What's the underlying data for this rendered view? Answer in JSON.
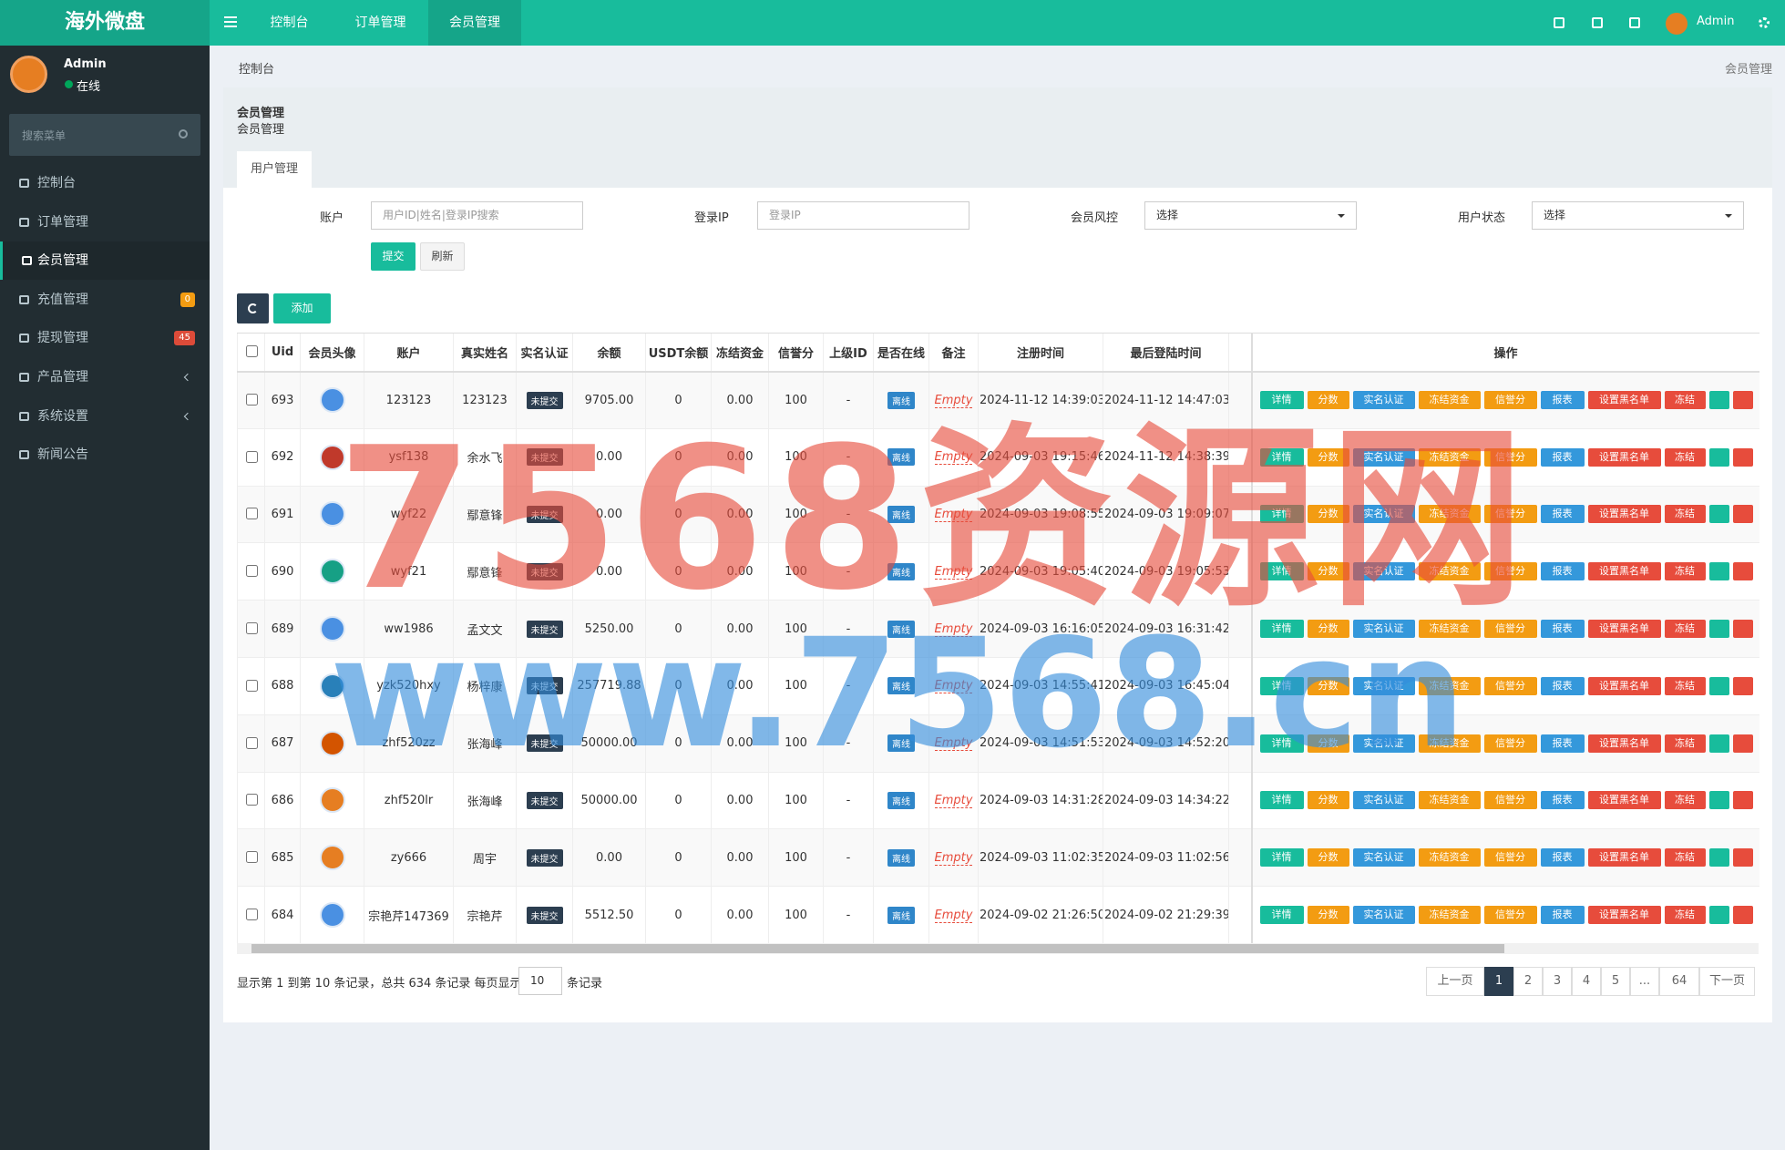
{
  "brand": "海外微盘",
  "topnav": [
    "控制台",
    "订单管理",
    "会员管理"
  ],
  "topright_user": "Admin",
  "sidebar": {
    "user": "Admin",
    "status": "在线",
    "search": "搜索菜单",
    "menu": [
      {
        "label": "控制台"
      },
      {
        "label": "订单管理"
      },
      {
        "label": "会员管理"
      },
      {
        "label": "充值管理",
        "badge": "0"
      },
      {
        "label": "提现管理",
        "badge": "45"
      },
      {
        "label": "产品管理"
      },
      {
        "label": "系统设置"
      },
      {
        "label": "新闻公告"
      }
    ]
  },
  "breadcrumb": {
    "home": "控制台",
    "current": "会员管理"
  },
  "panel": {
    "title": "会员管理",
    "subtitle": "会员管理",
    "tab": "用户管理"
  },
  "filters": [
    {
      "label": "账户",
      "placeholder": "用户ID|姓名|登录IP搜索"
    },
    {
      "label": "登录IP",
      "placeholder": "登录IP"
    },
    {
      "label": "会员风控",
      "select": "选择"
    },
    {
      "label": "用户状态",
      "select": "选择"
    }
  ],
  "buttons": {
    "submit": "提交",
    "reset": "刷新",
    "add": "添加"
  },
  "table": {
    "columns": [
      "Uid",
      "会员头像",
      "账户",
      "真实姓名",
      "实名认证",
      "余额",
      "USDT余额",
      "冻结资金",
      "信誉分",
      "上级ID",
      "是否在线",
      "备注",
      "注册时间",
      "最后登陆时间",
      "操作"
    ],
    "actions": [
      "详情",
      "分数",
      "实名认证",
      "冻结资金",
      "信誉分",
      "报表",
      "设置黑名单",
      "冻结"
    ],
    "rows": [
      {
        "uid": "693",
        "account": "123123",
        "name": "123123",
        "auth": "未提交",
        "balance": "9705.00",
        "usdt": "0",
        "frozen": "0.00",
        "credit": "100",
        "parent": "-",
        "online": "离线",
        "remark": "Empty",
        "reg_time": "2024-11-12 14:39:03",
        "last_login": "2024-11-12 14:47:03"
      },
      {
        "uid": "692",
        "account": "ysf138",
        "name": "余水飞",
        "auth": "未提交",
        "balance": "0.00",
        "usdt": "0",
        "frozen": "0.00",
        "credit": "100",
        "parent": "-",
        "online": "离线",
        "remark": "Empty",
        "reg_time": "2024-09-03 19:15:46",
        "last_login": "2024-11-12 14:38:39"
      },
      {
        "uid": "691",
        "account": "wyf22",
        "name": "鄢意锋",
        "auth": "未提交",
        "balance": "0.00",
        "usdt": "0",
        "frozen": "0.00",
        "credit": "100",
        "parent": "-",
        "online": "离线",
        "remark": "Empty",
        "reg_time": "2024-09-03 19:08:55",
        "last_login": "2024-09-03 19:09:07"
      },
      {
        "uid": "690",
        "account": "wyf21",
        "name": "鄢意锋",
        "auth": "未提交",
        "balance": "0.00",
        "usdt": "0",
        "frozen": "0.00",
        "credit": "100",
        "parent": "-",
        "online": "离线",
        "remark": "Empty",
        "reg_time": "2024-09-03 19:05:40",
        "last_login": "2024-09-03 19:05:53"
      },
      {
        "uid": "689",
        "account": "ww1986",
        "name": "孟文文",
        "auth": "未提交",
        "balance": "5250.00",
        "usdt": "0",
        "frozen": "0.00",
        "credit": "100",
        "parent": "-",
        "online": "离线",
        "remark": "Empty",
        "reg_time": "2024-09-03 16:16:05",
        "last_login": "2024-09-03 16:31:42"
      },
      {
        "uid": "688",
        "account": "yzk520hxy",
        "name": "杨梓康",
        "auth": "未提交",
        "balance": "257719.88",
        "usdt": "0",
        "frozen": "0.00",
        "credit": "100",
        "parent": "-",
        "online": "离线",
        "remark": "Empty",
        "reg_time": "2024-09-03 14:55:41",
        "last_login": "2024-09-03 16:45:04"
      },
      {
        "uid": "687",
        "account": "zhf520zz",
        "name": "张海峰",
        "auth": "未提交",
        "balance": "50000.00",
        "usdt": "0",
        "frozen": "0.00",
        "credit": "100",
        "parent": "-",
        "online": "离线",
        "remark": "Empty",
        "reg_time": "2024-09-03 14:51:53",
        "last_login": "2024-09-03 14:52:20"
      },
      {
        "uid": "686",
        "account": "zhf520lr",
        "name": "张海峰",
        "auth": "未提交",
        "balance": "50000.00",
        "usdt": "0",
        "frozen": "0.00",
        "credit": "100",
        "parent": "-",
        "online": "离线",
        "remark": "Empty",
        "reg_time": "2024-09-03 14:31:28",
        "last_login": "2024-09-03 14:34:22"
      },
      {
        "uid": "685",
        "account": "zy666",
        "name": "周宇",
        "auth": "未提交",
        "balance": "0.00",
        "usdt": "0",
        "frozen": "0.00",
        "credit": "100",
        "parent": "-",
        "online": "离线",
        "remark": "Empty",
        "reg_time": "2024-09-03 11:02:35",
        "last_login": "2024-09-03 11:02:56"
      },
      {
        "uid": "684",
        "account": "宗艳芹147369",
        "name": "宗艳芹",
        "auth": "未提交",
        "balance": "5512.50",
        "usdt": "0",
        "frozen": "0.00",
        "credit": "100",
        "parent": "-",
        "online": "离线",
        "remark": "Empty",
        "reg_time": "2024-09-02 21:26:50",
        "last_login": "2024-09-02 21:29:39"
      }
    ]
  },
  "pagination": {
    "info": "显示第 1 到第 10 条记录，总共 634 条记录 每页显示",
    "page_size": "10",
    "suffix": "条记录",
    "pages": [
      "上一页",
      "1",
      "2",
      "3",
      "4",
      "5",
      "...",
      "64",
      "下一页"
    ],
    "active": "1"
  },
  "watermark": [
    "7568资源网",
    "www.7568.cn"
  ]
}
